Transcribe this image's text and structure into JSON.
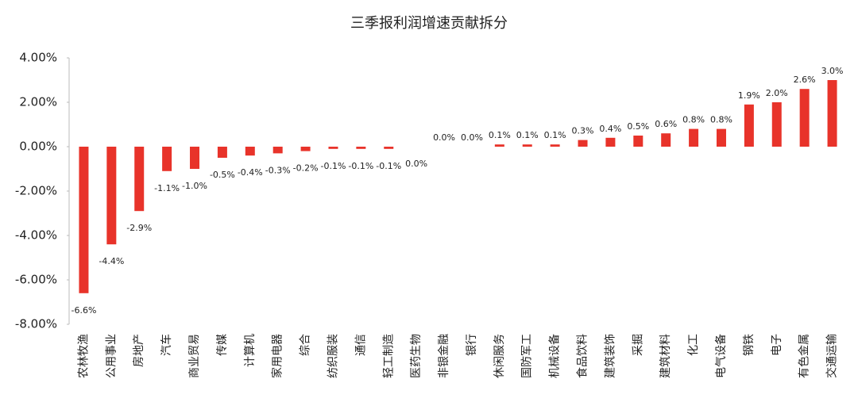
{
  "chart_data": {
    "type": "bar",
    "title": "三季报利润增速贡献拆分",
    "categories": [
      "农林牧渔",
      "公用事业",
      "房地产",
      "汽车",
      "商业贸易",
      "传媒",
      "计算机",
      "家用电器",
      "综合",
      "纺织服装",
      "通信",
      "轻工制造",
      "医药生物",
      "非银金融",
      "银行",
      "休闲服务",
      "国防军工",
      "机械设备",
      "食品饮料",
      "建筑装饰",
      "采掘",
      "建筑材料",
      "化工",
      "电气设备",
      "钢铁",
      "电子",
      "有色金属",
      "交通运输"
    ],
    "values": [
      -6.6,
      -4.4,
      -2.9,
      -1.1,
      -1.0,
      -0.5,
      -0.4,
      -0.3,
      -0.2,
      -0.1,
      -0.1,
      -0.1,
      0.0,
      0.0,
      0.0,
      0.1,
      0.1,
      0.1,
      0.3,
      0.4,
      0.5,
      0.6,
      0.8,
      0.8,
      1.9,
      2.0,
      2.6,
      3.0
    ],
    "value_labels": [
      "-6.6%",
      "-4.4%",
      "-2.9%",
      "-1.1%",
      "-1.0%",
      "-0.5%",
      "-0.4%",
      "-0.3%",
      "-0.2%",
      "-0.1%",
      "-0.1%",
      "-0.1%",
      "0.0%",
      "0.0%",
      "0.0%",
      "0.1%",
      "0.1%",
      "0.1%",
      "0.3%",
      "0.4%",
      "0.5%",
      "0.6%",
      "0.8%",
      "0.8%",
      "1.9%",
      "2.0%",
      "2.6%",
      "3.0%"
    ],
    "color": "#e8332a",
    "ylim": [
      -8,
      4
    ],
    "yticks": [
      {
        "value": -8,
        "label": "-8.00%"
      },
      {
        "value": -6,
        "label": "-6.00%"
      },
      {
        "value": -4,
        "label": "-4.00%"
      },
      {
        "value": -2,
        "label": "-2.00%"
      },
      {
        "value": 0,
        "label": "0.00%"
      },
      {
        "value": 2,
        "label": "2.00%"
      },
      {
        "value": 4,
        "label": "4.00%"
      }
    ],
    "grid": false
  }
}
